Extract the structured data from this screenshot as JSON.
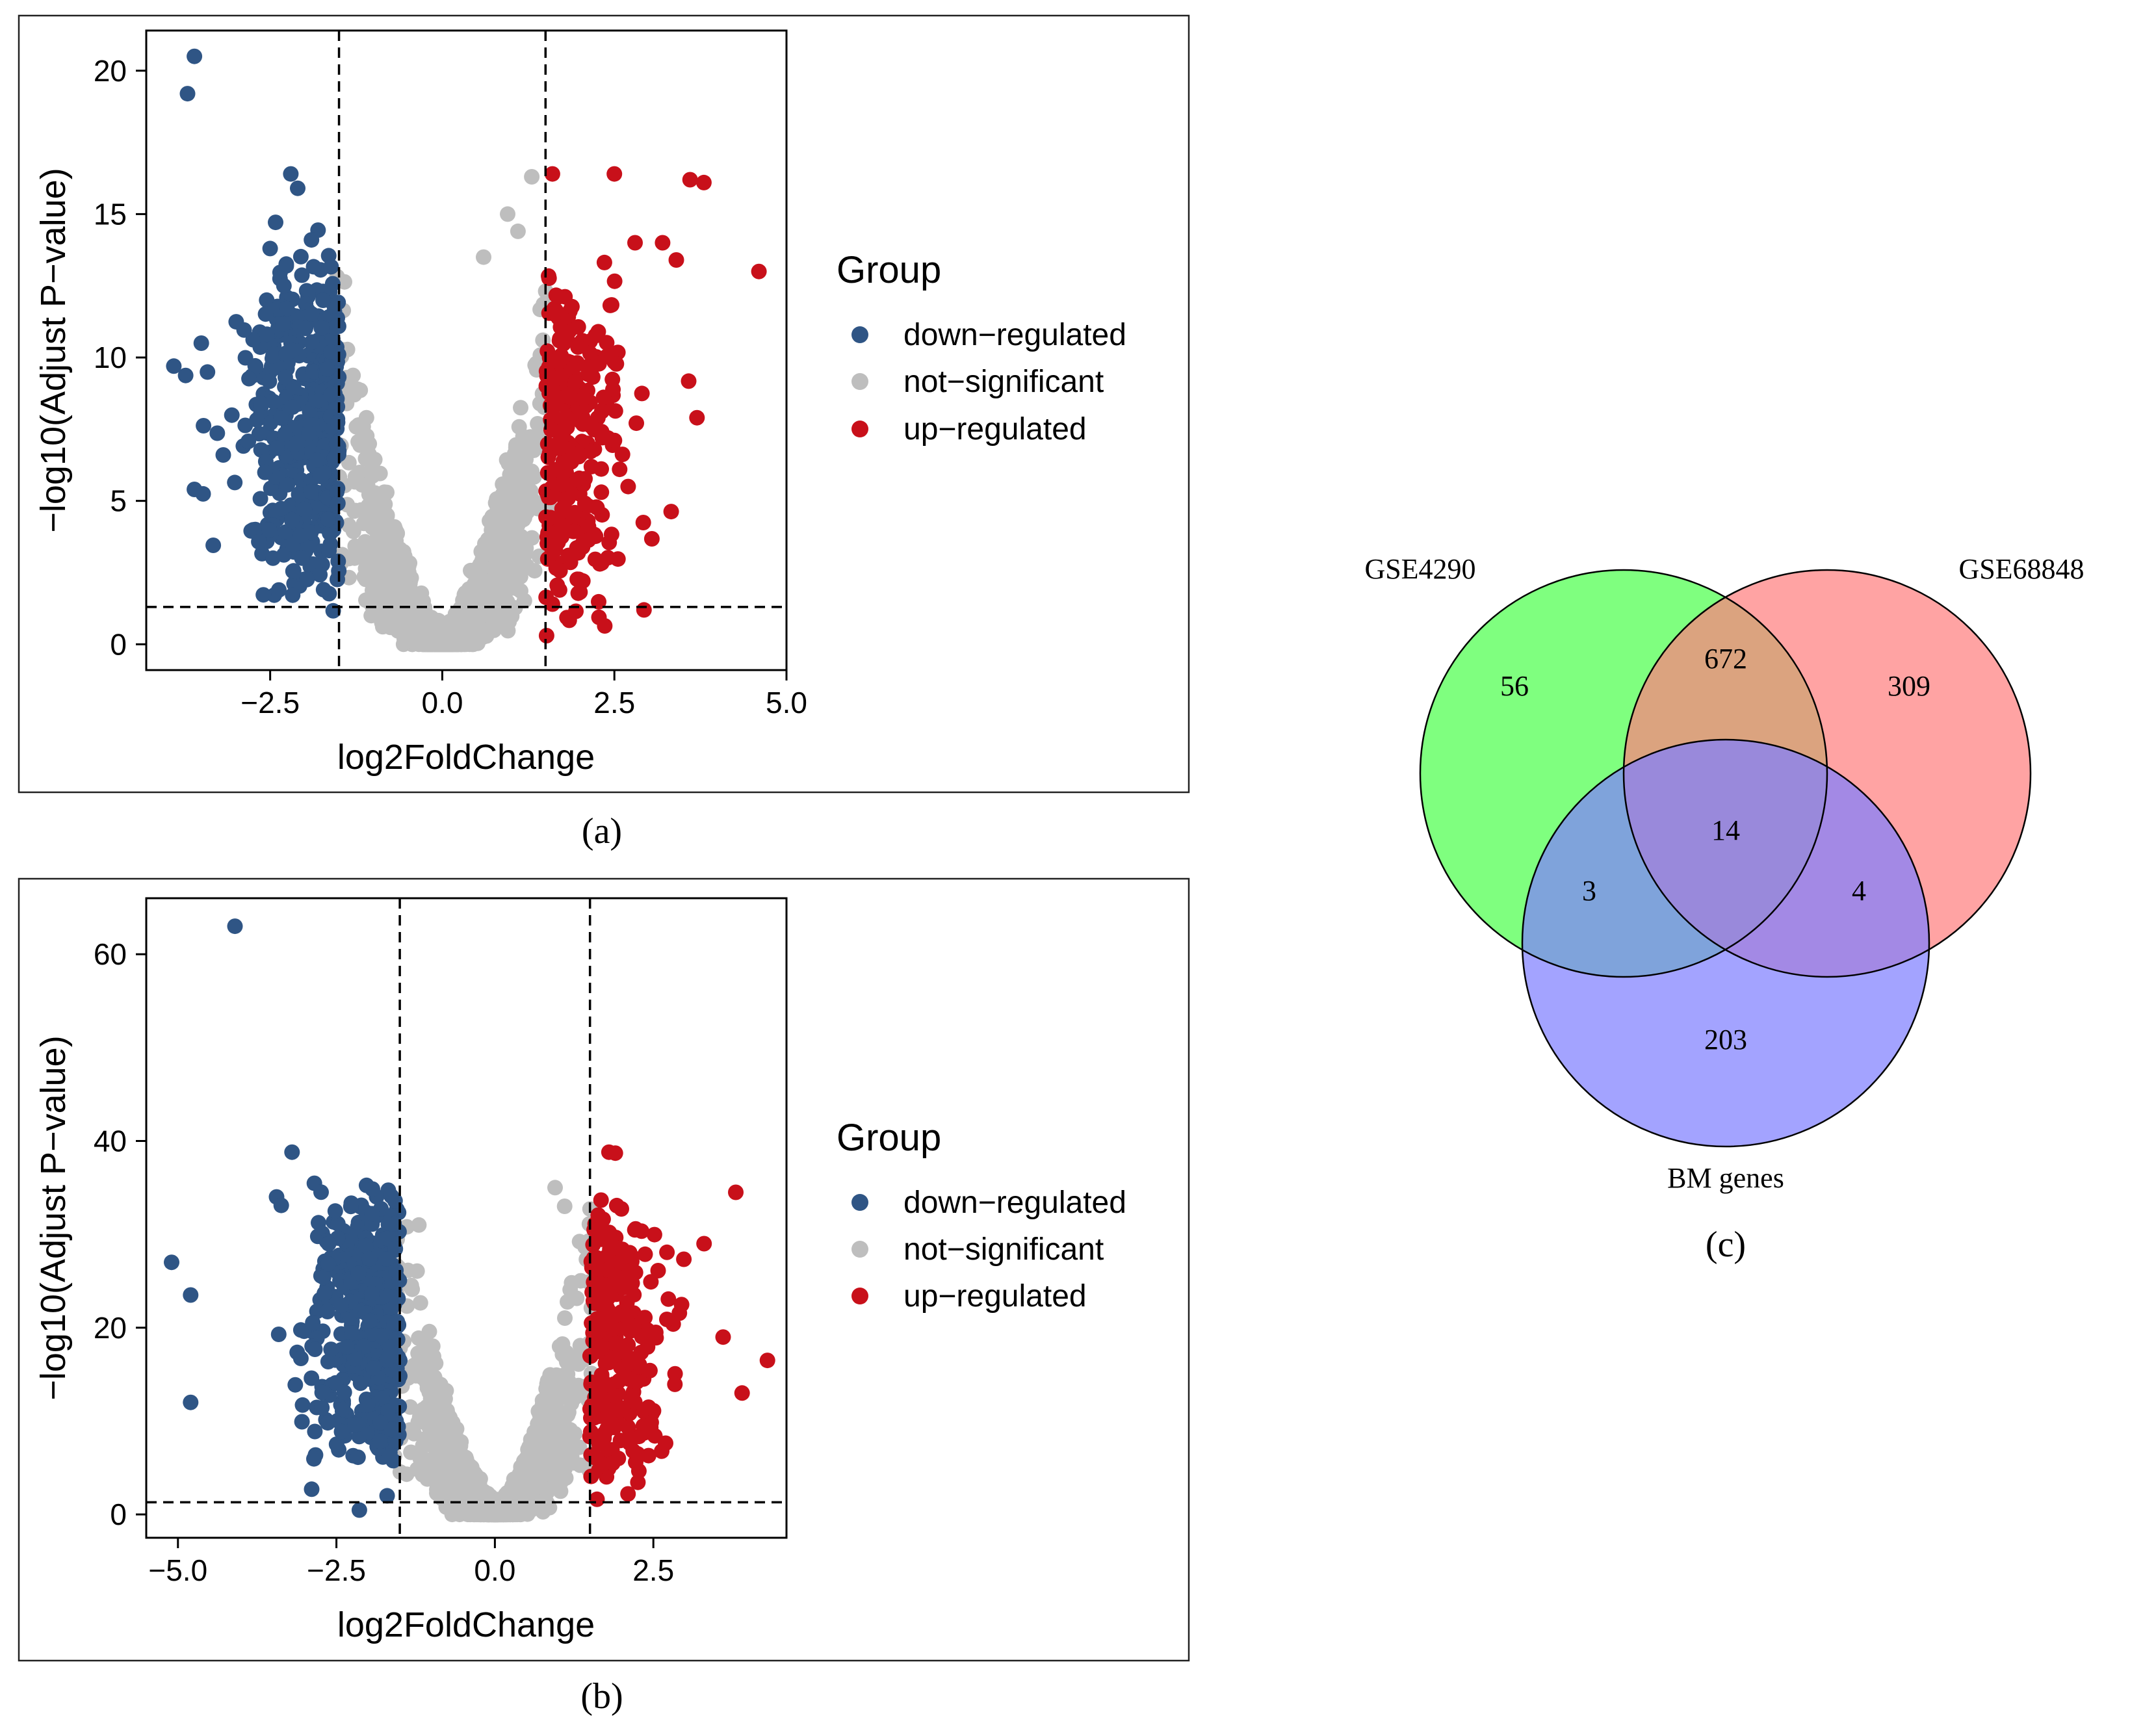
{
  "chart_data": [
    {
      "type": "scatter",
      "panel_label": "(a)",
      "xlabel": "log2FoldChange",
      "ylabel": "−log10(Adjust P−value)",
      "xlim": [
        -4.3,
        5.0
      ],
      "ylim": [
        -0.9,
        21.4
      ],
      "xticks": [
        -2.5,
        0.0,
        2.5,
        5.0
      ],
      "xtick_labels": [
        "−2.5",
        "0.0",
        "2.5",
        "5.0"
      ],
      "yticks": [
        0,
        5,
        10,
        15,
        20
      ],
      "ytick_labels": [
        "0",
        "5",
        "10",
        "15",
        "20"
      ],
      "vlines": [
        -1.5,
        1.5
      ],
      "hline": 1.3,
      "legend": {
        "title": "Group",
        "entries": [
          {
            "label": "down−regulated",
            "color": "#2f5585"
          },
          {
            "label": "not−significant",
            "color": "#bebebe"
          },
          {
            "label": "up−regulated",
            "color": "#c8101a"
          }
        ],
        "placement": "right"
      },
      "series": [
        {
          "name": "down−regulated",
          "color": "#2f5585",
          "highlight_points": [
            [
              -3.6,
              20.5
            ],
            [
              -3.7,
              19.2
            ],
            [
              -2.2,
              16.4
            ],
            [
              -2.1,
              15.9
            ],
            [
              -1.9,
              14.1
            ],
            [
              -3.5,
              10.5
            ],
            [
              -3.9,
              9.7
            ],
            [
              -3.6,
              5.4
            ],
            [
              -2.5,
              13.8
            ],
            [
              -2.3,
              12.5
            ]
          ]
        },
        {
          "name": "not−significant",
          "color": "#bebebe",
          "highlight_points": [
            [
              1.3,
              16.3
            ],
            [
              0.95,
              15.0
            ],
            [
              1.1,
              14.4
            ],
            [
              0.6,
              13.5
            ]
          ]
        },
        {
          "name": "up−regulated",
          "color": "#c8101a",
          "highlight_points": [
            [
              4.6,
              13.0
            ],
            [
              3.8,
              16.1
            ],
            [
              3.6,
              16.2
            ],
            [
              2.5,
              16.4
            ],
            [
              1.6,
              16.4
            ],
            [
              3.7,
              7.9
            ],
            [
              3.2,
              14.0
            ],
            [
              2.8,
              14.0
            ],
            [
              3.4,
              13.4
            ],
            [
              2.7,
              5.5
            ],
            [
              1.6,
              1.4
            ]
          ]
        }
      ]
    },
    {
      "type": "scatter",
      "panel_label": "(b)",
      "xlabel": "log2FoldChange",
      "ylabel": "−log10(Adjust P−value)",
      "xlim": [
        -5.5,
        4.6
      ],
      "ylim": [
        -2.5,
        66.0
      ],
      "xticks": [
        -5.0,
        -2.5,
        0.0,
        2.5
      ],
      "xtick_labels": [
        "−5.0",
        "−2.5",
        "0.0",
        "2.5"
      ],
      "yticks": [
        0,
        20,
        40,
        60
      ],
      "ytick_labels": [
        "0",
        "20",
        "40",
        "60"
      ],
      "vlines": [
        -1.5,
        1.5
      ],
      "hline": 1.3,
      "legend": {
        "title": "Group",
        "entries": [
          {
            "label": "down−regulated",
            "color": "#2f5585"
          },
          {
            "label": "not−significant",
            "color": "#bebebe"
          },
          {
            "label": "up−regulated",
            "color": "#c8101a"
          }
        ],
        "placement": "right"
      },
      "series": [
        {
          "name": "down−regulated",
          "color": "#2f5585",
          "highlight_points": [
            [
              -4.1,
              63.0
            ],
            [
              -3.2,
              38.8
            ],
            [
              -5.1,
              27.0
            ],
            [
              -4.8,
              23.5
            ],
            [
              -4.8,
              12.0
            ],
            [
              -1.7,
              2.0
            ]
          ]
        },
        {
          "name": "not−significant",
          "color": "#bebebe",
          "highlight_points": [
            [
              0.95,
              35.0
            ],
            [
              1.1,
              33.0
            ],
            [
              -1.2,
              31.0
            ]
          ]
        },
        {
          "name": "up−regulated",
          "color": "#c8101a",
          "highlight_points": [
            [
              4.3,
              16.5
            ],
            [
              3.8,
              34.5
            ],
            [
              3.9,
              13.0
            ],
            [
              3.6,
              19.0
            ],
            [
              1.8,
              38.8
            ],
            [
              1.9,
              38.7
            ],
            [
              3.3,
              29.0
            ],
            [
              2.1,
              2.2
            ]
          ]
        }
      ]
    },
    {
      "type": "venn",
      "panel_label": "(c)",
      "sets": [
        {
          "name": "GSE4290",
          "color": "#7fff7f"
        },
        {
          "name": "GSE68848",
          "color": "#ff7f7f"
        },
        {
          "name": "BM genes",
          "color": "#7f7fff"
        }
      ],
      "regions": [
        {
          "sets": [
            "GSE4290"
          ],
          "value": 56
        },
        {
          "sets": [
            "GSE68848"
          ],
          "value": 309
        },
        {
          "sets": [
            "BM genes"
          ],
          "value": 203
        },
        {
          "sets": [
            "GSE4290",
            "GSE68848"
          ],
          "value": 672
        },
        {
          "sets": [
            "GSE4290",
            "BM genes"
          ],
          "value": 3
        },
        {
          "sets": [
            "GSE68848",
            "BM genes"
          ],
          "value": 4
        },
        {
          "sets": [
            "GSE4290",
            "GSE68848",
            "BM genes"
          ],
          "value": 14
        }
      ]
    }
  ]
}
